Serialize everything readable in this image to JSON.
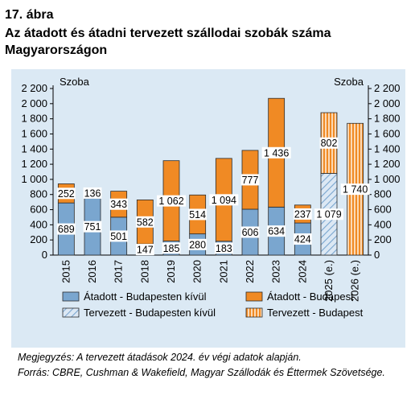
{
  "header": {
    "figure_number": "17. ábra",
    "title": "Az átadott és átadni tervezett szállodai szobák száma Magyarországon"
  },
  "notes": {
    "note": "Megjegyzés: A tervezett átadások 2024. év végi adatok alapján.",
    "source": "Forrás: CBRE, Cushman & Wakefield, Magyar Szállodák és Éttermek Szövetsége."
  },
  "chart_data": {
    "type": "bar",
    "stacked": true,
    "categories": [
      "2015",
      "2016",
      "2017",
      "2018",
      "2019",
      "2020",
      "2021",
      "2022",
      "2023",
      "2024",
      "2025 (e.)",
      "2026 (e.)"
    ],
    "ylabel_left": "Szoba",
    "ylabel_right": "Szoba",
    "ylim": [
      0,
      2200
    ],
    "yticks": [
      0,
      200,
      400,
      600,
      800,
      1000,
      1200,
      1400,
      1600,
      1800,
      2000,
      2200
    ],
    "ytick_labels": [
      "0",
      "200",
      "400",
      "600",
      "800",
      "1 000",
      "1 200",
      "1 400",
      "1 600",
      "1 800",
      "2 000",
      "2 200"
    ],
    "grid": false,
    "legend_position": "bottom",
    "series": [
      {
        "name": "Átadott - Budapesten kívül",
        "color": "#7aa6cf",
        "pattern": "solid",
        "values": [
          689,
          751,
          501,
          147,
          185,
          280,
          183,
          606,
          634,
          424,
          0,
          0
        ],
        "labels": [
          "689",
          "751",
          "501",
          "147",
          "185",
          "280",
          "183",
          "606",
          "634",
          "424",
          "",
          ""
        ]
      },
      {
        "name": "Átadott - Budapest",
        "color": "#f08a24",
        "pattern": "solid",
        "values": [
          252,
          136,
          343,
          582,
          1062,
          514,
          1094,
          777,
          1436,
          237,
          0,
          0
        ],
        "labels": [
          "252",
          "136",
          "343",
          "582",
          "1 062",
          "514",
          "1 094",
          "777",
          "1 436",
          "237",
          "",
          ""
        ]
      },
      {
        "name": "Tervezett - Budapesten kívül",
        "color": "#7aa6cf",
        "pattern": "diagonal",
        "values": [
          0,
          0,
          0,
          0,
          0,
          0,
          0,
          0,
          0,
          0,
          1079,
          0
        ],
        "labels": [
          "",
          "",
          "",
          "",
          "",
          "",
          "",
          "",
          "",
          "",
          "1 079",
          ""
        ]
      },
      {
        "name": "Tervezett - Budapest",
        "color": "#f08a24",
        "pattern": "vertical",
        "values": [
          0,
          0,
          0,
          0,
          0,
          0,
          0,
          0,
          0,
          0,
          802,
          1740
        ],
        "labels": [
          "",
          "",
          "",
          "",
          "",
          "",
          "",
          "",
          "",
          "",
          "802",
          "1 740"
        ]
      }
    ]
  }
}
